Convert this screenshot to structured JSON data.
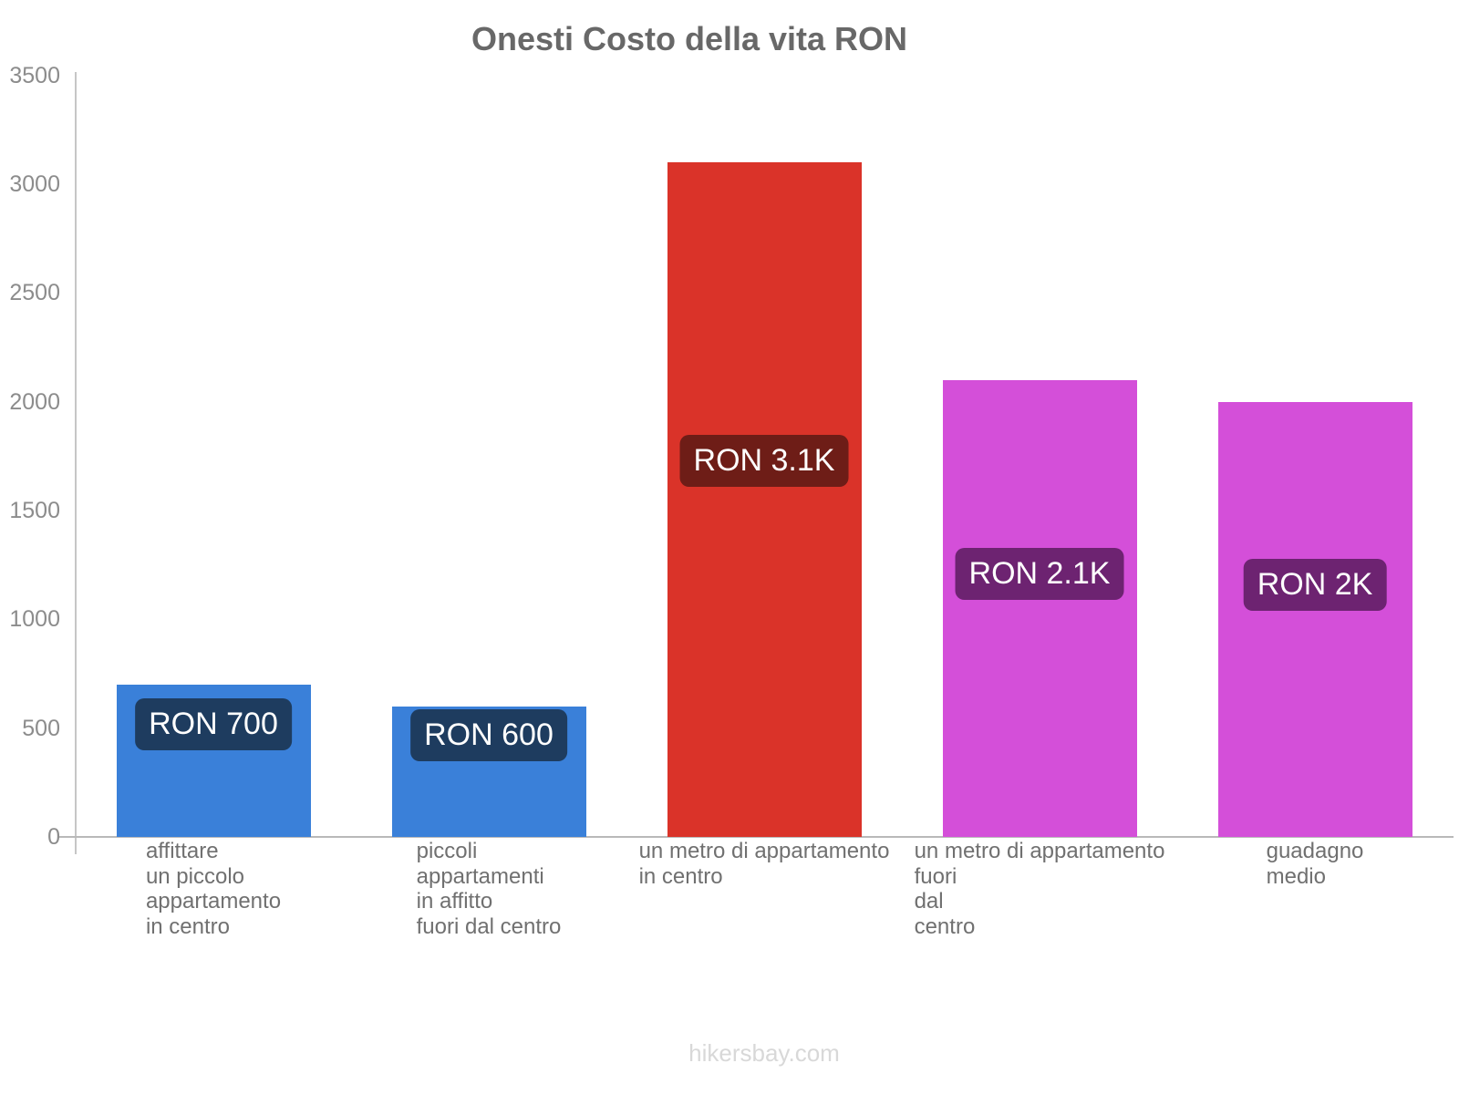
{
  "title": "Onesti Costo della vita RON",
  "footer": "hikersbay.com",
  "chart_data": {
    "type": "bar",
    "title": "Onesti Costo della vita RON",
    "currency": "RON",
    "categories": [
      "affittare un piccolo appartamento in centro",
      "piccoli appartamenti in affitto fuori dal centro",
      "un metro di appartamento in centro",
      "un metro di appartamento fuori dal centro",
      "guadagno medio"
    ],
    "category_lines": [
      [
        "affittare",
        "un piccolo",
        "appartamento",
        "in centro"
      ],
      [
        "piccoli",
        "appartamenti",
        "in affitto",
        "fuori dal centro"
      ],
      [
        "un metro di appartamento",
        "in centro"
      ],
      [
        "un metro di appartamento",
        "fuori",
        "dal",
        "centro"
      ],
      [
        "guadagno",
        "medio"
      ]
    ],
    "values": [
      700,
      600,
      3100,
      2100,
      2000
    ],
    "value_labels": [
      "RON 700",
      "RON 600",
      "RON 3.1K",
      "RON 2.1K",
      "RON 2K"
    ],
    "bar_colors": [
      "#3a80d9",
      "#3a80d9",
      "#da3329",
      "#d44fd9",
      "#d44fd9"
    ],
    "value_label_bg": [
      "#1e3c5f",
      "#1e3c5f",
      "#6e1d17",
      "#6d2371",
      "#6d2371"
    ],
    "value_label_text_color": "#ffffff",
    "xlabel": "",
    "ylabel": "",
    "ylim": [
      0,
      3500
    ],
    "yticks": [
      0,
      500,
      1000,
      1500,
      2000,
      2500,
      3000,
      3500
    ],
    "grid": false,
    "legend": false
  }
}
